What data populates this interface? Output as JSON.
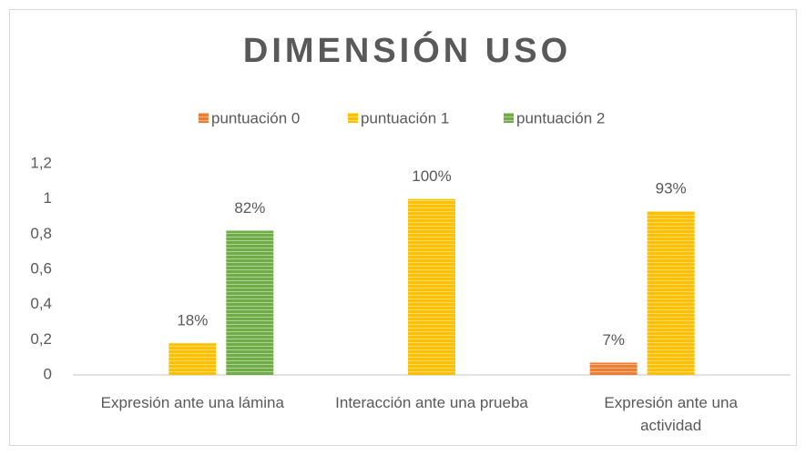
{
  "chart_data": {
    "type": "bar",
    "title": "DIMENSIÓN USO",
    "categories": [
      "Expresión ante una lámina",
      "Interacción ante una prueba",
      "Expresión ante una actividad"
    ],
    "series": [
      {
        "name": "puntuación 0",
        "color": "#ed7d31",
        "values": [
          null,
          null,
          0.07
        ],
        "value_labels": [
          null,
          null,
          "7%"
        ]
      },
      {
        "name": "puntuación 1",
        "color": "#ffc000",
        "values": [
          0.18,
          1,
          0.93
        ],
        "value_labels": [
          "18%",
          "100%",
          "93%"
        ]
      },
      {
        "name": "puntuación 2",
        "color": "#70ad47",
        "values": [
          0.82,
          null,
          null
        ],
        "value_labels": [
          "82%",
          null,
          null
        ]
      }
    ],
    "ylim": [
      0,
      1.2
    ],
    "yticks": [
      0,
      {
        "value": 0.2,
        "label": "0,2"
      },
      {
        "value": 0.4,
        "label": "0,4"
      },
      {
        "value": 0.6,
        "label": "0,6"
      },
      {
        "value": 0.8,
        "label": "0,8"
      },
      1,
      {
        "value": 1.2,
        "label": "1,2"
      }
    ],
    "grid": false,
    "legend": "top"
  }
}
